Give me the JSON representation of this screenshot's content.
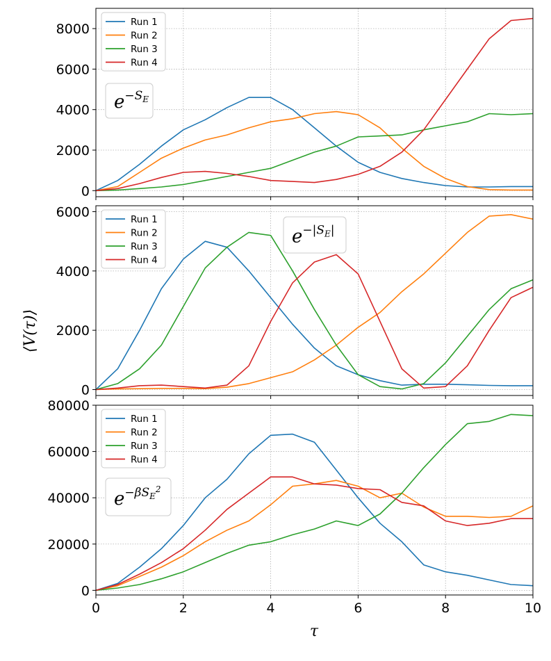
{
  "chart_data": [
    {
      "type": "line",
      "panel": "top",
      "annotation": {
        "base": "e",
        "exponent": "−S",
        "subscript": "E"
      },
      "xlim": [
        0,
        10
      ],
      "ylim": [
        -300,
        9000
      ],
      "yticks": [
        0,
        2000,
        4000,
        6000,
        8000
      ],
      "xticks": [
        0,
        2,
        4,
        6,
        8,
        10
      ],
      "grid": true,
      "legend": "top-left",
      "series": [
        {
          "name": "Run 1",
          "color": "#1f77b4",
          "x": [
            0,
            0.5,
            1,
            1.5,
            2,
            2.5,
            3,
            3.5,
            4,
            4.5,
            5,
            5.5,
            6,
            6.5,
            7,
            7.5,
            8,
            8.5,
            9,
            9.5,
            10
          ],
          "y": [
            0,
            500,
            1300,
            2200,
            3000,
            3500,
            4100,
            4600,
            4600,
            4000,
            3100,
            2200,
            1400,
            900,
            600,
            400,
            250,
            180,
            180,
            200,
            200
          ]
        },
        {
          "name": "Run 2",
          "color": "#ff7f0e",
          "x": [
            0,
            0.5,
            1,
            1.5,
            2,
            2.5,
            3,
            3.5,
            4,
            4.5,
            5,
            5.5,
            6,
            6.5,
            7,
            7.5,
            8,
            8.5,
            9,
            9.5,
            10
          ],
          "y": [
            0,
            200,
            900,
            1600,
            2100,
            2500,
            2750,
            3100,
            3400,
            3550,
            3800,
            3900,
            3750,
            3100,
            2100,
            1200,
            600,
            200,
            50,
            30,
            30
          ]
        },
        {
          "name": "Run 3",
          "color": "#2ca02c",
          "x": [
            0,
            0.5,
            1,
            1.5,
            2,
            2.5,
            3,
            3.5,
            4,
            4.5,
            5,
            5.5,
            6,
            6.5,
            7,
            7.5,
            8,
            8.5,
            9,
            9.5,
            10
          ],
          "y": [
            0,
            30,
            100,
            180,
            300,
            500,
            700,
            900,
            1100,
            1500,
            1900,
            2200,
            2650,
            2700,
            2750,
            3000,
            3200,
            3400,
            3800,
            3750,
            3800
          ]
        },
        {
          "name": "Run 4",
          "color": "#d62728",
          "x": [
            0,
            0.5,
            1,
            1.5,
            2,
            2.5,
            3,
            3.5,
            4,
            4.5,
            5,
            5.5,
            6,
            6.5,
            7,
            7.5,
            8,
            8.5,
            9,
            9.5,
            10
          ],
          "y": [
            0,
            100,
            350,
            650,
            900,
            950,
            850,
            700,
            500,
            450,
            400,
            550,
            800,
            1200,
            1900,
            3000,
            4500,
            6000,
            7500,
            8400,
            8500
          ]
        }
      ]
    },
    {
      "type": "line",
      "panel": "middle",
      "annotation": {
        "base": "e",
        "exponent": "−|S",
        "subscript": "E",
        "suffix": "|"
      },
      "xlim": [
        0,
        10
      ],
      "ylim": [
        -200,
        6200
      ],
      "yticks": [
        0,
        2000,
        4000,
        6000
      ],
      "xticks": [
        0,
        2,
        4,
        6,
        8,
        10
      ],
      "grid": true,
      "legend": "top-left",
      "series": [
        {
          "name": "Run 1",
          "color": "#1f77b4",
          "x": [
            0,
            0.5,
            1,
            1.5,
            2,
            2.5,
            3,
            3.5,
            4,
            4.5,
            5,
            5.5,
            6,
            6.5,
            7,
            7.5,
            8,
            8.5,
            9,
            9.5,
            10
          ],
          "y": [
            0,
            700,
            2000,
            3400,
            4400,
            5000,
            4800,
            4000,
            3100,
            2200,
            1400,
            800,
            500,
            300,
            150,
            180,
            180,
            160,
            140,
            130,
            130
          ]
        },
        {
          "name": "Run 2",
          "color": "#ff7f0e",
          "x": [
            0,
            0.5,
            1,
            1.5,
            2,
            2.5,
            3,
            3.5,
            4,
            4.5,
            5,
            5.5,
            6,
            6.5,
            7,
            7.5,
            8,
            8.5,
            9,
            9.5,
            10
          ],
          "y": [
            0,
            20,
            30,
            40,
            40,
            30,
            80,
            200,
            400,
            600,
            1000,
            1500,
            2100,
            2600,
            3300,
            3900,
            4600,
            5300,
            5850,
            5900,
            5750
          ]
        },
        {
          "name": "Run 3",
          "color": "#2ca02c",
          "x": [
            0,
            0.5,
            1,
            1.5,
            2,
            2.5,
            3,
            3.5,
            4,
            4.5,
            5,
            5.5,
            6,
            6.5,
            7,
            7.5,
            8,
            8.5,
            9,
            9.5,
            10
          ],
          "y": [
            0,
            200,
            700,
            1500,
            2800,
            4100,
            4800,
            5300,
            5200,
            4000,
            2700,
            1500,
            500,
            100,
            20,
            200,
            900,
            1800,
            2700,
            3400,
            3700
          ]
        },
        {
          "name": "Run 4",
          "color": "#d62728",
          "x": [
            0,
            0.5,
            1,
            1.5,
            2,
            2.5,
            3,
            3.5,
            4,
            4.5,
            5,
            5.5,
            6,
            6.5,
            7,
            7.5,
            8,
            8.5,
            9,
            9.5,
            10
          ],
          "y": [
            0,
            50,
            130,
            150,
            100,
            50,
            150,
            800,
            2300,
            3600,
            4300,
            4550,
            3900,
            2300,
            700,
            50,
            100,
            800,
            2000,
            3100,
            3450
          ]
        }
      ]
    },
    {
      "type": "line",
      "panel": "bottom",
      "annotation": {
        "base": "e",
        "exponent": "−βS",
        "subscript": "E",
        "superscript": "2"
      },
      "xlim": [
        0,
        10
      ],
      "ylim": [
        -2000,
        80000
      ],
      "yticks": [
        0,
        20000,
        40000,
        60000,
        80000
      ],
      "xticks": [
        0,
        2,
        4,
        6,
        8,
        10
      ],
      "xlabel": "τ",
      "grid": true,
      "legend": "top-left",
      "series": [
        {
          "name": "Run 1",
          "color": "#1f77b4",
          "x": [
            0,
            0.5,
            1,
            1.5,
            2,
            2.5,
            3,
            3.5,
            4,
            4.5,
            5,
            5.5,
            6,
            6.5,
            7,
            7.5,
            8,
            8.5,
            9,
            9.5,
            10
          ],
          "y": [
            0,
            3000,
            10000,
            18000,
            28000,
            40000,
            48000,
            59000,
            67000,
            67500,
            64000,
            52000,
            40000,
            29000,
            21000,
            11000,
            8000,
            6500,
            4500,
            2500,
            2000
          ]
        },
        {
          "name": "Run 2",
          "color": "#ff7f0e",
          "x": [
            0,
            0.5,
            1,
            1.5,
            2,
            2.5,
            3,
            3.5,
            4,
            4.5,
            5,
            5.5,
            6,
            6.5,
            7,
            7.5,
            8,
            8.5,
            9,
            9.5,
            10
          ],
          "y": [
            0,
            2000,
            6000,
            10000,
            15000,
            21000,
            26000,
            30000,
            37000,
            45000,
            46000,
            47500,
            45000,
            40000,
            42000,
            36000,
            32000,
            32000,
            31500,
            32000,
            36500
          ]
        },
        {
          "name": "Run 3",
          "color": "#2ca02c",
          "x": [
            0,
            0.5,
            1,
            1.5,
            2,
            2.5,
            3,
            3.5,
            4,
            4.5,
            5,
            5.5,
            6,
            6.5,
            7,
            7.5,
            8,
            8.5,
            9,
            9.5,
            10
          ],
          "y": [
            0,
            1000,
            2500,
            5000,
            8000,
            12000,
            16000,
            19500,
            21000,
            24000,
            26500,
            30000,
            28000,
            33000,
            42000,
            53000,
            63000,
            72000,
            73000,
            76000,
            75500
          ]
        },
        {
          "name": "Run 4",
          "color": "#d62728",
          "x": [
            0,
            0.5,
            1,
            1.5,
            2,
            2.5,
            3,
            3.5,
            4,
            4.5,
            5,
            5.5,
            6,
            6.5,
            7,
            7.5,
            8,
            8.5,
            9,
            9.5,
            10
          ],
          "y": [
            0,
            2500,
            7000,
            12000,
            18000,
            26000,
            35000,
            42000,
            49000,
            49000,
            46000,
            45500,
            44000,
            43500,
            38000,
            36500,
            30000,
            28000,
            29000,
            31000,
            31000
          ]
        }
      ]
    }
  ],
  "shared": {
    "ylabel": "⟨V(τ)⟩",
    "xlabel": "τ"
  }
}
